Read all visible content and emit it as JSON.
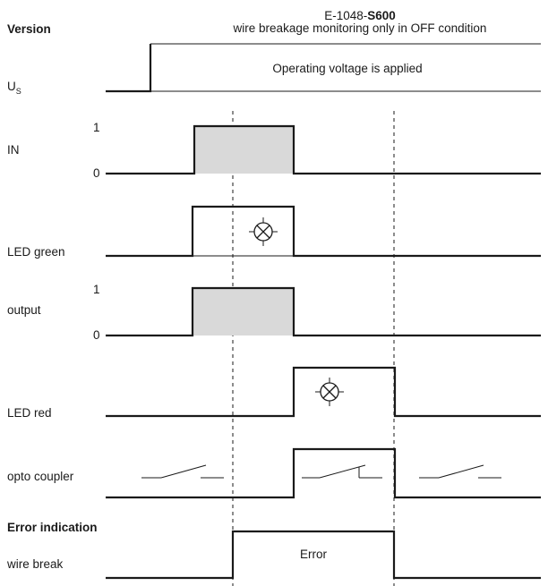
{
  "header": {
    "version_label": "Version",
    "model_prefix": "E-1048-",
    "model_suffix": "S600",
    "description": "wire breakage monitoring only in OFF condition"
  },
  "signals": {
    "us": {
      "label_main": "U",
      "label_sub": "S",
      "box_text": "Operating voltage is applied"
    },
    "in": {
      "label": "IN",
      "level_high": "1",
      "level_low": "0"
    },
    "led_green": {
      "label": "LED green"
    },
    "output": {
      "label": "output",
      "level_high": "1",
      "level_low": "0"
    },
    "led_red": {
      "label": "LED red"
    },
    "opto": {
      "label": "opto coupler"
    },
    "error_section": {
      "title": "Error indication"
    },
    "wire_break": {
      "label": "wire break",
      "box_text": "Error"
    }
  }
}
